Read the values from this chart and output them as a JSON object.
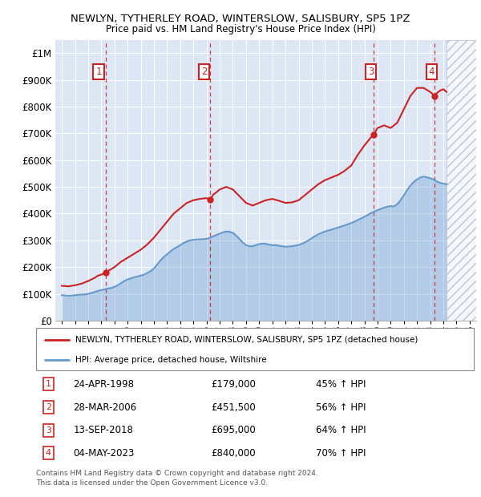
{
  "title": "NEWLYN, TYTHERLEY ROAD, WINTERSLOW, SALISBURY, SP5 1PZ",
  "subtitle": "Price paid vs. HM Land Registry's House Price Index (HPI)",
  "xlim": [
    1994.5,
    2026.5
  ],
  "ylim": [
    0,
    1050000
  ],
  "yticks": [
    0,
    100000,
    200000,
    300000,
    400000,
    500000,
    600000,
    700000,
    800000,
    900000,
    1000000
  ],
  "ytick_labels": [
    "£0",
    "£100K",
    "£200K",
    "£300K",
    "£400K",
    "£500K",
    "£600K",
    "£700K",
    "£800K",
    "£900K",
    "£1M"
  ],
  "hpi_color": "#6699cc",
  "price_color": "#cc2222",
  "background_color": "#dce6f5",
  "grid_color": "#ffffff",
  "purchases": [
    {
      "num": 1,
      "year": 1998.31,
      "price": 179000,
      "label": "1",
      "x_label": 1997.8
    },
    {
      "num": 2,
      "year": 2006.24,
      "price": 451500,
      "label": "2",
      "x_label": 2005.8
    },
    {
      "num": 3,
      "year": 2018.71,
      "price": 695000,
      "label": "3",
      "x_label": 2018.5
    },
    {
      "num": 4,
      "year": 2023.34,
      "price": 840000,
      "label": "4",
      "x_label": 2023.1
    }
  ],
  "table_rows": [
    {
      "num": "1",
      "date": "24-APR-1998",
      "price": "£179,000",
      "hpi": "45% ↑ HPI"
    },
    {
      "num": "2",
      "date": "28-MAR-2006",
      "price": "£451,500",
      "hpi": "56% ↑ HPI"
    },
    {
      "num": "3",
      "date": "13-SEP-2018",
      "price": "£695,000",
      "hpi": "64% ↑ HPI"
    },
    {
      "num": "4",
      "date": "04-MAY-2023",
      "price": "£840,000",
      "hpi": "70% ↑ HPI"
    }
  ],
  "legend_line1": "NEWLYN, TYTHERLEY ROAD, WINTERSLOW, SALISBURY, SP5 1PZ (detached house)",
  "legend_line2": "HPI: Average price, detached house, Wiltshire",
  "footer": "Contains HM Land Registry data © Crown copyright and database right 2024.\nThis data is licensed under the Open Government Licence v3.0.",
  "hpi_data": {
    "years": [
      1995.0,
      1995.25,
      1995.5,
      1995.75,
      1996.0,
      1996.25,
      1996.5,
      1996.75,
      1997.0,
      1997.25,
      1997.5,
      1997.75,
      1998.0,
      1998.25,
      1998.5,
      1998.75,
      1999.0,
      1999.25,
      1999.5,
      1999.75,
      2000.0,
      2000.25,
      2000.5,
      2000.75,
      2001.0,
      2001.25,
      2001.5,
      2001.75,
      2002.0,
      2002.25,
      2002.5,
      2002.75,
      2003.0,
      2003.25,
      2003.5,
      2003.75,
      2004.0,
      2004.25,
      2004.5,
      2004.75,
      2005.0,
      2005.25,
      2005.5,
      2005.75,
      2006.0,
      2006.25,
      2006.5,
      2006.75,
      2007.0,
      2007.25,
      2007.5,
      2007.75,
      2008.0,
      2008.25,
      2008.5,
      2008.75,
      2009.0,
      2009.25,
      2009.5,
      2009.75,
      2010.0,
      2010.25,
      2010.5,
      2010.75,
      2011.0,
      2011.25,
      2011.5,
      2011.75,
      2012.0,
      2012.25,
      2012.5,
      2012.75,
      2013.0,
      2013.25,
      2013.5,
      2013.75,
      2014.0,
      2014.25,
      2014.5,
      2014.75,
      2015.0,
      2015.25,
      2015.5,
      2015.75,
      2016.0,
      2016.25,
      2016.5,
      2016.75,
      2017.0,
      2017.25,
      2017.5,
      2017.75,
      2018.0,
      2018.25,
      2018.5,
      2018.75,
      2019.0,
      2019.25,
      2019.5,
      2019.75,
      2020.0,
      2020.25,
      2020.5,
      2020.75,
      2021.0,
      2021.25,
      2021.5,
      2021.75,
      2022.0,
      2022.25,
      2022.5,
      2022.75,
      2023.0,
      2023.25,
      2023.5,
      2023.75,
      2024.0,
      2024.25
    ],
    "values": [
      95000,
      94000,
      93000,
      93500,
      95000,
      96000,
      97000,
      98000,
      100000,
      103000,
      107000,
      111000,
      114000,
      117000,
      120000,
      122000,
      126000,
      132000,
      140000,
      148000,
      154000,
      158000,
      162000,
      165000,
      168000,
      172000,
      178000,
      185000,
      195000,
      210000,
      225000,
      238000,
      248000,
      258000,
      268000,
      275000,
      282000,
      290000,
      296000,
      300000,
      302000,
      303000,
      304000,
      304000,
      306000,
      309000,
      315000,
      320000,
      325000,
      330000,
      333000,
      332000,
      328000,
      318000,
      305000,
      292000,
      282000,
      278000,
      278000,
      282000,
      286000,
      288000,
      287000,
      284000,
      282000,
      282000,
      280000,
      278000,
      276000,
      277000,
      278000,
      280000,
      283000,
      287000,
      293000,
      300000,
      308000,
      316000,
      323000,
      328000,
      333000,
      337000,
      340000,
      344000,
      348000,
      352000,
      356000,
      360000,
      365000,
      370000,
      376000,
      382000,
      388000,
      395000,
      402000,
      408000,
      413000,
      418000,
      422000,
      426000,
      428000,
      427000,
      435000,
      450000,
      468000,
      488000,
      505000,
      518000,
      528000,
      535000,
      538000,
      536000,
      532000,
      528000,
      520000,
      515000,
      512000,
      510000
    ]
  },
  "price_data": {
    "years": [
      1995.0,
      1995.5,
      1996.0,
      1996.5,
      1997.0,
      1997.5,
      1997.75,
      1998.0,
      1998.31,
      1998.5,
      1999.0,
      1999.5,
      2000.0,
      2000.5,
      2001.0,
      2001.5,
      2002.0,
      2002.5,
      2003.0,
      2003.5,
      2004.0,
      2004.5,
      2005.0,
      2005.5,
      2006.0,
      2006.24,
      2006.5,
      2007.0,
      2007.5,
      2008.0,
      2008.5,
      2009.0,
      2009.5,
      2010.0,
      2010.5,
      2011.0,
      2011.5,
      2012.0,
      2012.5,
      2013.0,
      2013.5,
      2014.0,
      2014.5,
      2015.0,
      2015.5,
      2016.0,
      2016.5,
      2017.0,
      2017.5,
      2018.0,
      2018.5,
      2018.71,
      2019.0,
      2019.5,
      2020.0,
      2020.5,
      2021.0,
      2021.5,
      2022.0,
      2022.5,
      2023.0,
      2023.34,
      2023.5,
      2023.75,
      2024.0,
      2024.25
    ],
    "values": [
      130000,
      128000,
      132000,
      138000,
      148000,
      160000,
      168000,
      172000,
      179000,
      185000,
      200000,
      220000,
      235000,
      250000,
      265000,
      285000,
      310000,
      340000,
      370000,
      400000,
      420000,
      440000,
      450000,
      455000,
      458000,
      451500,
      470000,
      490000,
      500000,
      490000,
      465000,
      440000,
      430000,
      440000,
      450000,
      455000,
      448000,
      440000,
      442000,
      450000,
      470000,
      490000,
      510000,
      525000,
      535000,
      545000,
      560000,
      580000,
      620000,
      655000,
      685000,
      695000,
      720000,
      730000,
      720000,
      740000,
      790000,
      840000,
      870000,
      870000,
      855000,
      840000,
      850000,
      860000,
      865000,
      855000
    ]
  }
}
